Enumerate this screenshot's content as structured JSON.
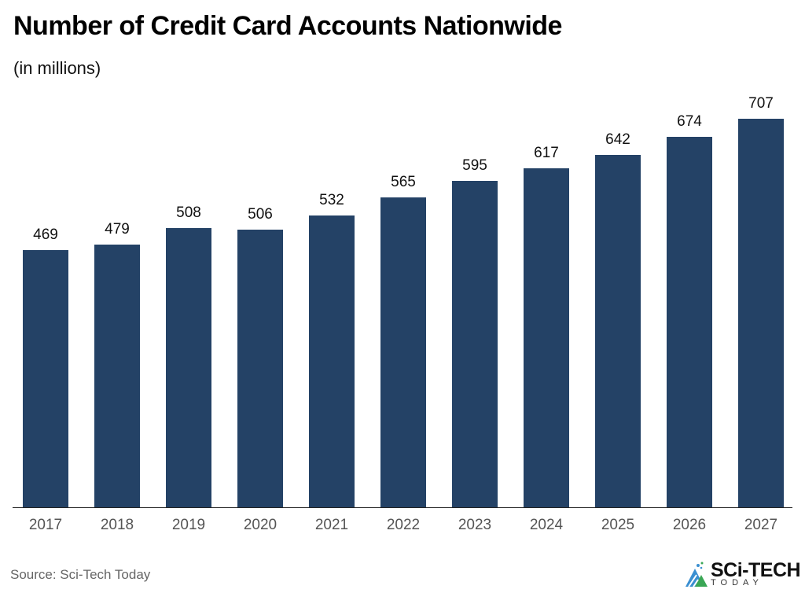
{
  "header": {
    "title": "Number of Credit Card Accounts Nationwide",
    "subtitle": "(in millions)"
  },
  "footer": {
    "source": "Source: Sci-Tech Today",
    "logo_text": "SCi-TECH",
    "logo_sub": "TODAY"
  },
  "colors": {
    "bar": "#244266",
    "logo_blue": "#3a8fd1",
    "logo_green": "#3aa655"
  },
  "chart_data": {
    "type": "bar",
    "title": "Number of Credit Card Accounts Nationwide",
    "subtitle": "(in millions)",
    "xlabel": "",
    "ylabel": "",
    "categories": [
      "2017",
      "2018",
      "2019",
      "2020",
      "2021",
      "2022",
      "2023",
      "2024",
      "2025",
      "2026",
      "2027"
    ],
    "values": [
      469,
      479,
      508,
      506,
      532,
      565,
      595,
      617,
      642,
      674,
      707
    ],
    "labels": [
      "469",
      "479",
      "508",
      "506",
      "532",
      "565",
      "595",
      "617",
      "642",
      "674",
      "707"
    ],
    "ylim": [
      0,
      707
    ],
    "grid": false,
    "legend": null,
    "data_labels": true
  }
}
